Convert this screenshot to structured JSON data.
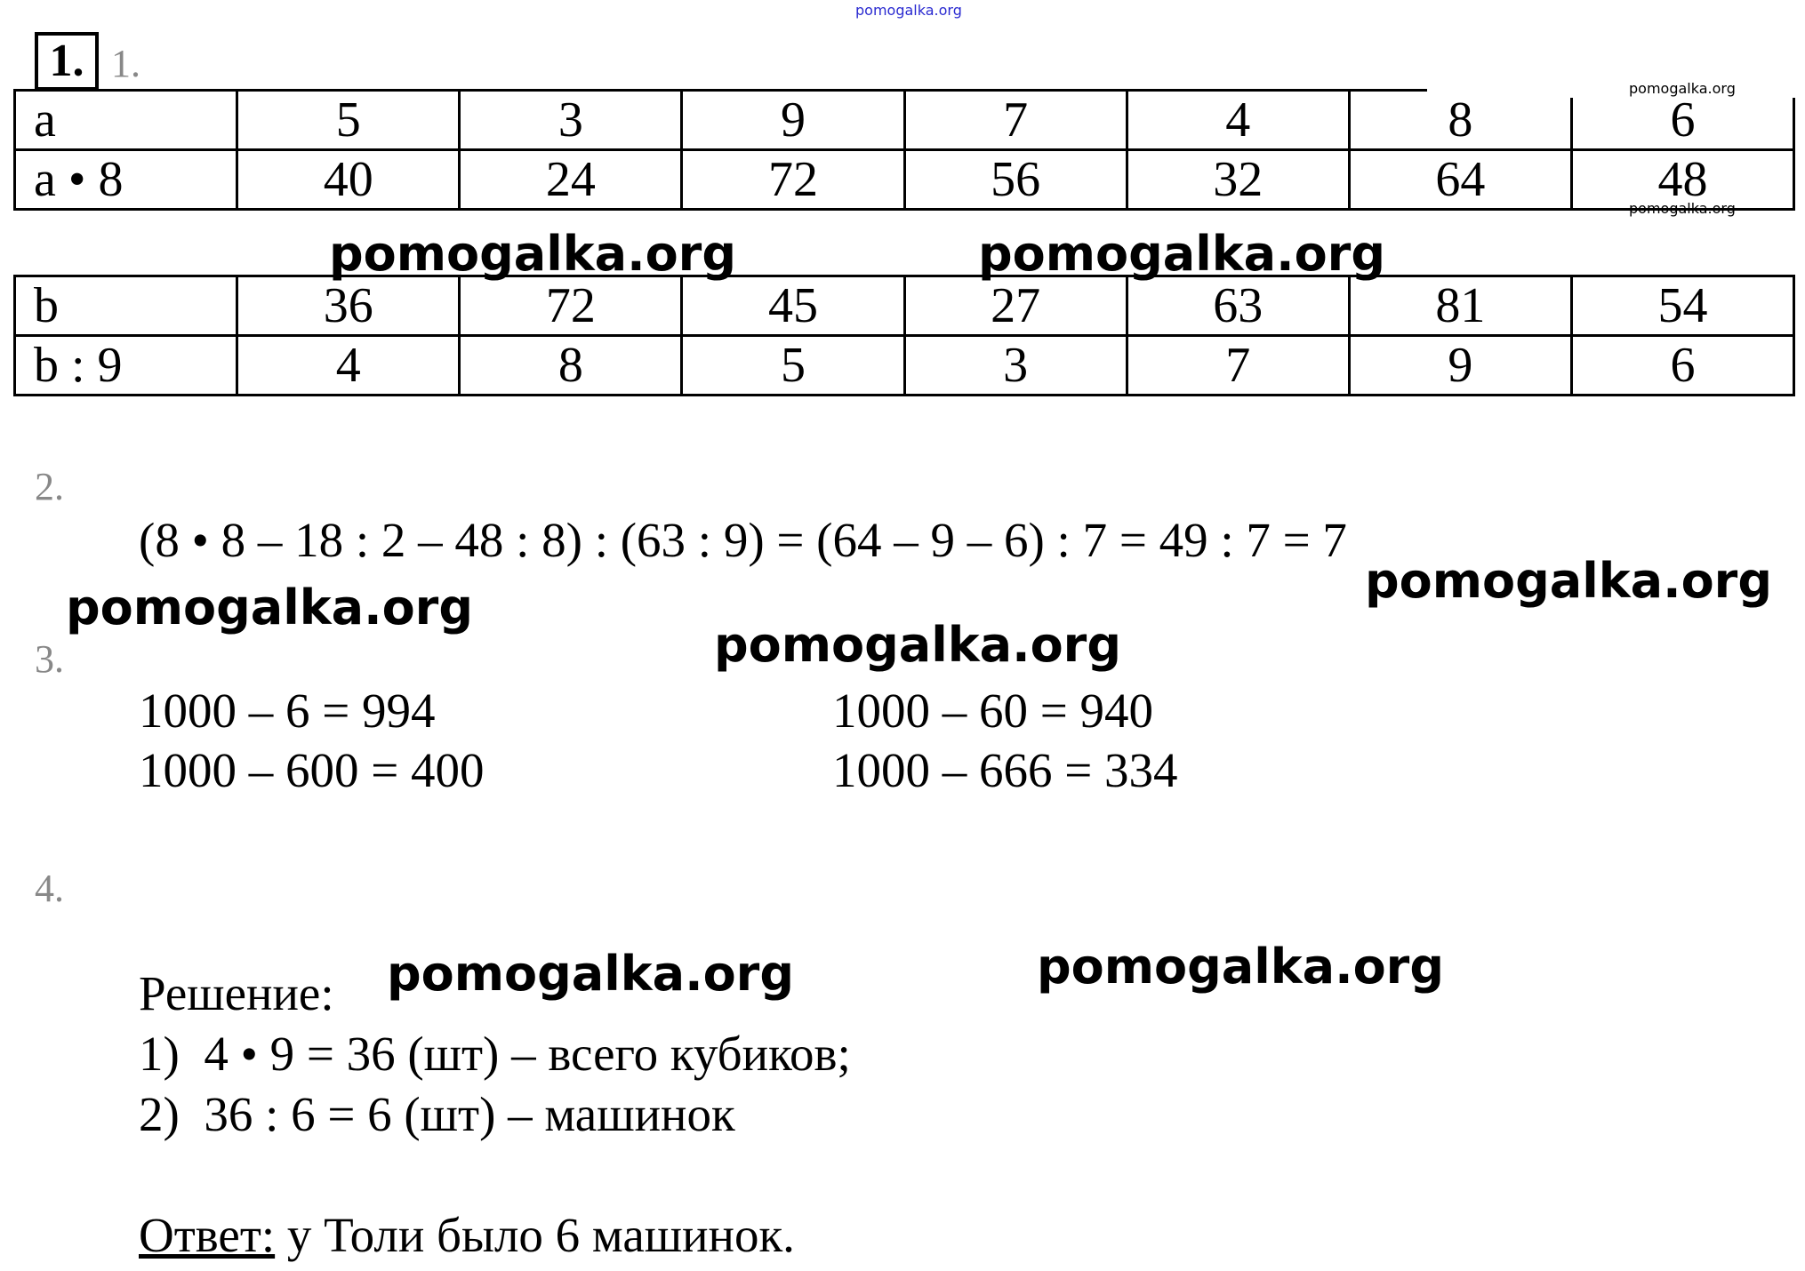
{
  "watermark": "pomogalka.org",
  "task_number": "1.",
  "sections": {
    "s1": "1.",
    "s2": "2.",
    "s3": "3.",
    "s4": "4."
  },
  "table1": {
    "rows": [
      [
        "a",
        "5",
        "3",
        "9",
        "7",
        "4",
        "8",
        "6"
      ],
      [
        "a • 8",
        "40",
        "24",
        "72",
        "56",
        "32",
        "64",
        "48"
      ]
    ]
  },
  "table2": {
    "rows": [
      [
        "b",
        "36",
        "72",
        "45",
        "27",
        "63",
        "81",
        "54"
      ],
      [
        "b : 9",
        "4",
        "8",
        "5",
        "3",
        "7",
        "9",
        "6"
      ]
    ]
  },
  "task2": {
    "expression": "(8 • 8 – 18 : 2 – 48 : 8) : (63 : 9) = (64 – 9 – 6) : 7 = 49 : 7 = 7"
  },
  "task3": {
    "left": [
      "1000 – 6 = 994",
      "1000 – 600 = 400"
    ],
    "right": [
      "1000 – 60 = 940",
      "1000 – 666 = 334"
    ]
  },
  "task4": {
    "solution_label": "Решение:",
    "steps": [
      "1)  4 • 9 = 36 (шт) – всего кубиков;",
      "2)  36 : 6 = 6 (шт) – машинок"
    ],
    "answer_label": "Ответ:",
    "answer_text": " у Толи было 6 машинок."
  }
}
